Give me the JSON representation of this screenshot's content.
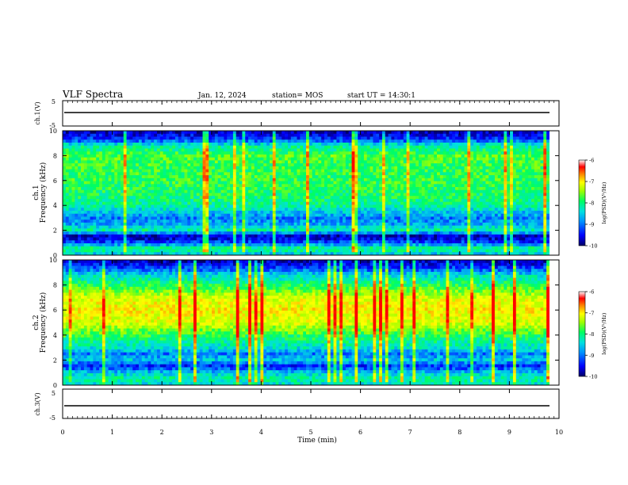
{
  "header": {
    "title": "VLF Spectra",
    "date": "Jan. 12, 2024",
    "station": "station= MOS",
    "start": "start UT =  14:30:1"
  },
  "colors": {
    "colormap": [
      "#000066",
      "#0000ff",
      "#0080ff",
      "#00e0e0",
      "#00ff60",
      "#a0ff00",
      "#ffff00",
      "#ff8000",
      "#ff0000",
      "#ffffff"
    ],
    "trace": "#000000",
    "frame": "#000000"
  },
  "chart_data": [
    {
      "type": "line",
      "panel": "ch1-waveform",
      "ylabel": "ch.1(V)",
      "ylim": [
        -5,
        5
      ],
      "yticks": [
        "5",
        "-5"
      ],
      "x": [
        0,
        10
      ],
      "y": [
        0.0,
        0.0
      ],
      "xlim": [
        0,
        10
      ]
    },
    {
      "type": "heatmap",
      "panel": "ch1-spectrogram",
      "ylabel": "Frequency (kHz)",
      "channel_label": "ch.1",
      "ylim": [
        0,
        10
      ],
      "yticks": [
        "0",
        "2",
        "4",
        "6",
        "8",
        "10"
      ],
      "xlim": [
        0,
        10
      ],
      "colorbar": {
        "label": "log(PSD)(V²/Hz)",
        "min": -10,
        "max": -6,
        "ticks": [
          "-6",
          "-7",
          "-8",
          "-9",
          "-10"
        ]
      },
      "freq_profile_kHz": [
        0,
        0.5,
        1,
        1.5,
        2,
        2.5,
        3,
        3.5,
        4,
        5,
        6,
        7,
        8,
        8.8,
        9.3,
        10
      ],
      "log_psd_profile": [
        -8.8,
        -8.0,
        -9.2,
        -9.8,
        -8.2,
        -8.8,
        -9.0,
        -8.6,
        -8.2,
        -8.0,
        -7.9,
        -7.9,
        -7.8,
        -8.3,
        -9.3,
        -9.8
      ]
    },
    {
      "type": "heatmap",
      "panel": "ch2-spectrogram",
      "ylabel": "Frequency (kHz)",
      "channel_label": "ch.2",
      "ylim": [
        0,
        10
      ],
      "yticks": [
        "0",
        "2",
        "4",
        "6",
        "8",
        "10"
      ],
      "xlim": [
        0,
        10
      ],
      "colorbar": {
        "label": "log(PSD)(V²/Hz)",
        "min": -10,
        "max": -6,
        "ticks": [
          "-6",
          "-7",
          "-8",
          "-9",
          "-10"
        ]
      },
      "freq_profile_kHz": [
        0,
        0.5,
        1,
        1.5,
        2,
        2.5,
        3,
        3.5,
        4,
        5,
        6,
        7,
        8,
        8.8,
        9.3,
        10
      ],
      "log_psd_profile": [
        -8.5,
        -8.2,
        -8.6,
        -9.4,
        -8.6,
        -9.0,
        -8.4,
        -8.2,
        -7.9,
        -7.2,
        -7.0,
        -7.2,
        -8.0,
        -8.5,
        -9.2,
        -9.8
      ]
    },
    {
      "type": "line",
      "panel": "ch3-waveform",
      "ylabel": "ch.3(V)",
      "ylim": [
        -5,
        5
      ],
      "yticks": [
        "5",
        "-5"
      ],
      "x": [
        0,
        10
      ],
      "y": [
        0.0,
        0.0
      ],
      "xlim": [
        0,
        10
      ]
    }
  ],
  "xaxis": {
    "label": "Time (min)",
    "ticks": [
      "0",
      "1",
      "2",
      "3",
      "4",
      "5",
      "6",
      "7",
      "8",
      "9",
      "10"
    ]
  }
}
